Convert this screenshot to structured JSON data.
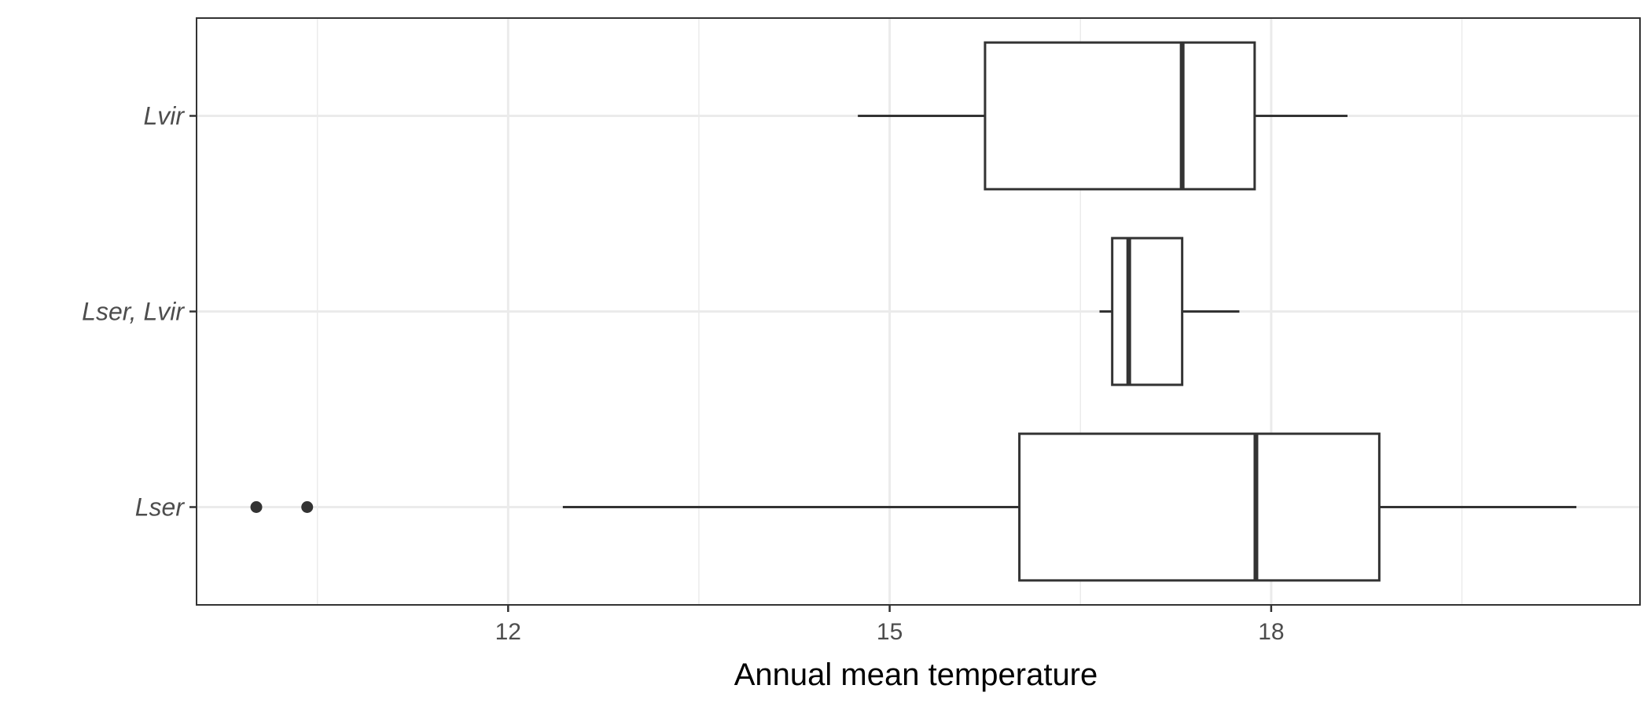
{
  "chart_data": {
    "type": "boxplot",
    "orientation": "horizontal",
    "title": "",
    "xlabel": "Annual mean temperature",
    "ylabel": "",
    "xlim": [
      9.55,
      20.9
    ],
    "x_ticks": [
      12,
      15,
      18
    ],
    "x_minor_gridlines": [
      10.5,
      13.5,
      16.5,
      19.5
    ],
    "grid": true,
    "categories": [
      "Lvir",
      "Lser, Lvir",
      "Lser"
    ],
    "boxes": [
      {
        "category": "Lvir",
        "whisker_low": 14.75,
        "q1": 15.75,
        "median": 17.3,
        "q3": 17.87,
        "whisker_high": 18.6,
        "outliers": []
      },
      {
        "category": "Lser, Lvir",
        "whisker_low": 16.65,
        "q1": 16.75,
        "median": 16.88,
        "q3": 17.3,
        "whisker_high": 17.75,
        "outliers": []
      },
      {
        "category": "Lser",
        "whisker_low": 12.43,
        "q1": 16.02,
        "median": 17.88,
        "q3": 18.85,
        "whisker_high": 20.4,
        "outliers": [
          10.02,
          10.42
        ]
      }
    ]
  }
}
